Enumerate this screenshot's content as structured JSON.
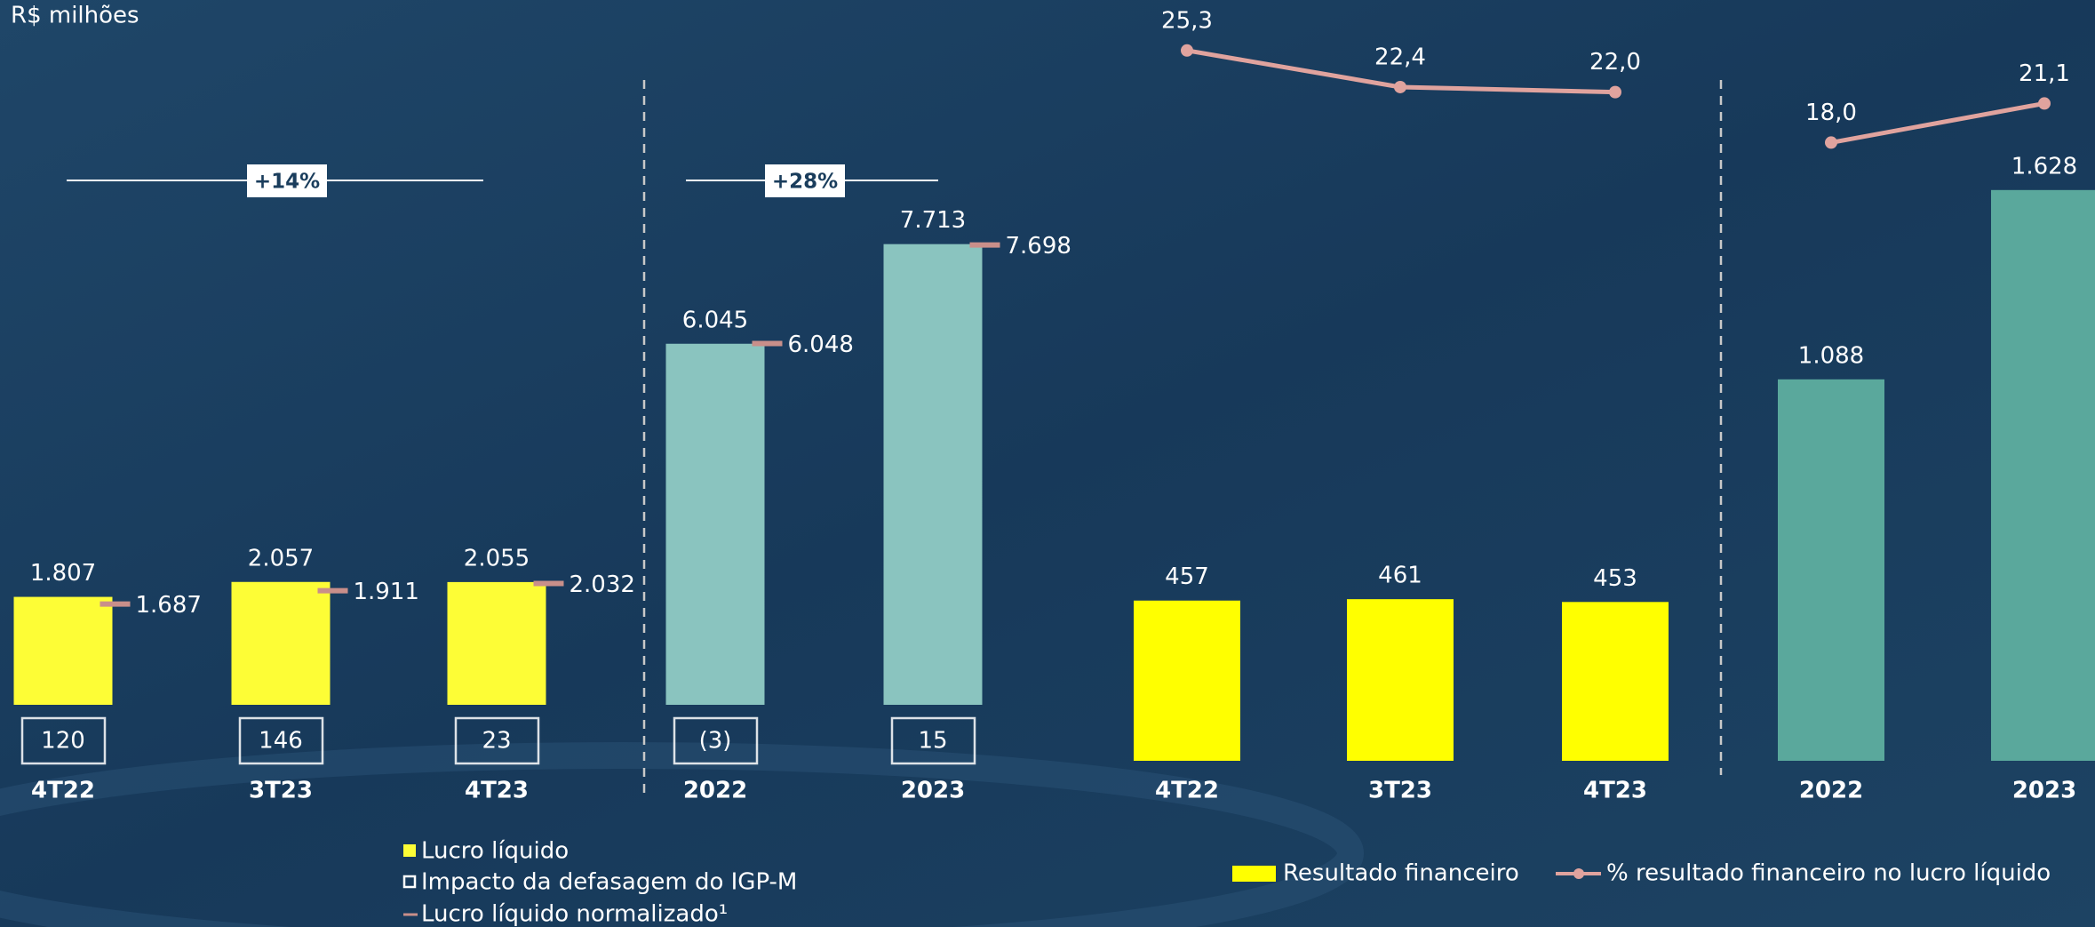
{
  "unit": "R$ milhões",
  "chart_data": [
    {
      "type": "bar",
      "categories": [
        "4T22",
        "3T23",
        "4T23"
      ],
      "ylim": [
        0,
        11800
      ],
      "annotation": "+14%",
      "series": [
        {
          "name": "Lucro líquido",
          "style": "bar",
          "color": "#fdfd36",
          "values": [
            1807,
            2057,
            2055
          ],
          "value_labels": [
            "1.807",
            "2.057",
            "2.055"
          ]
        },
        {
          "name": "Impacto da defasagem do IGP-M",
          "style": "boxed-label",
          "color": "#ffffff",
          "values": [
            120,
            146,
            23
          ]
        },
        {
          "name": "Lucro líquido normalizado¹",
          "style": "marker",
          "color": "#c98f8a",
          "values": [
            1687,
            1911,
            2032
          ],
          "value_labels": [
            "1.687",
            "1.911",
            "2.032"
          ]
        }
      ]
    },
    {
      "type": "bar",
      "categories": [
        "2022",
        "2023"
      ],
      "ylim": [
        0,
        11800
      ],
      "annotation": "+28%",
      "series": [
        {
          "style": "bar",
          "color": "#8ac4bf",
          "values": [
            6045,
            7713
          ],
          "value_labels": [
            "6.045",
            "7.713"
          ]
        },
        {
          "style": "boxed-label",
          "color": "#ffffff",
          "values": [
            -3,
            15
          ],
          "value_labels": [
            "(3)",
            "15"
          ]
        },
        {
          "style": "marker",
          "color": "#c98f8a",
          "values": [
            6048,
            7698
          ],
          "value_labels": [
            "6.048",
            "7.698"
          ]
        }
      ]
    },
    {
      "type": "bar",
      "categories": [
        "4T22",
        "3T23",
        "4T23"
      ],
      "ylim": [
        0,
        2170
      ],
      "y2lim": [
        -31,
        29.3
      ],
      "series": [
        {
          "name": "Resultado financeiro",
          "style": "bar",
          "color": "#ffff00",
          "values": [
            457,
            461,
            453
          ]
        },
        {
          "name": "% resultado financeiro no lucro líquido",
          "style": "line",
          "axis": "y2",
          "color": "#e0a39e",
          "values": [
            25.3,
            22.4,
            22.0
          ],
          "value_labels": [
            "25,3",
            "22,4",
            "22,0"
          ]
        }
      ]
    },
    {
      "type": "bar",
      "categories": [
        "2022",
        "2023"
      ],
      "ylim": [
        0,
        2170
      ],
      "y2lim": [
        -31,
        29.3
      ],
      "series": [
        {
          "style": "bar",
          "color": "#5aa89c",
          "values": [
            1088,
            1628
          ],
          "value_labels": [
            "1.088",
            "1.628"
          ]
        },
        {
          "style": "line",
          "axis": "y2",
          "color": "#e0a39e",
          "values": [
            18.0,
            21.1
          ],
          "value_labels": [
            "18,0",
            "21,1"
          ]
        }
      ]
    }
  ]
}
